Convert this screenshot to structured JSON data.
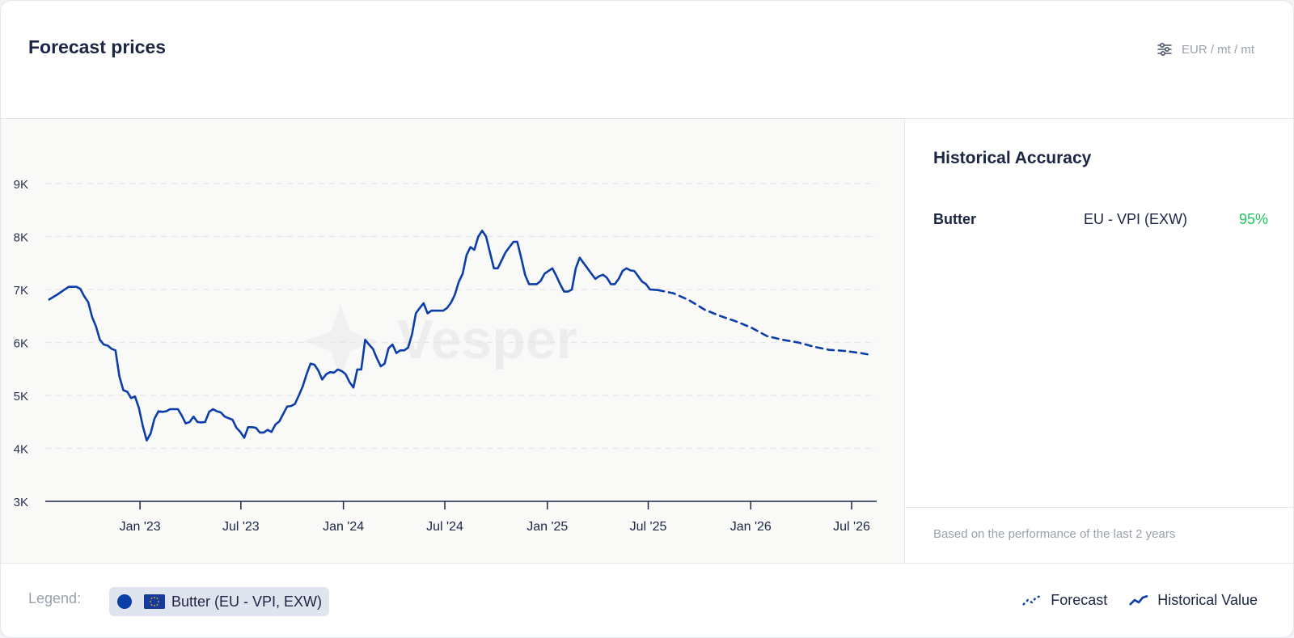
{
  "header": {
    "title": "Forecast prices",
    "unit_label": "EUR / mt / mt",
    "unit_icon": "sliders-icon"
  },
  "side_panel": {
    "title": "Historical Accuracy",
    "rows": [
      {
        "name": "Butter",
        "source": "EU - VPI (EXW)",
        "accuracy": "95%"
      }
    ],
    "footer_note": "Based on the performance of the last 2 years",
    "accuracy_color": "#22c55e"
  },
  "legend": {
    "label": "Legend:",
    "chip_text": "Butter (EU - VPI, EXW)",
    "chip_icon": "eu-flag-icon",
    "forecast_label": "Forecast",
    "historical_label": "Historical Value"
  },
  "watermark": "Vesper",
  "chart_data": {
    "type": "line",
    "yticks": [
      "3K",
      "4K",
      "5K",
      "6K",
      "7K",
      "8K",
      "9K"
    ],
    "ylim": [
      3000,
      9000
    ],
    "xlim": [
      "2022-07-15",
      "2026-08-15"
    ],
    "xticks": [
      {
        "label": "Jan '23",
        "date": "2023-01-01"
      },
      {
        "label": "Jul '23",
        "date": "2023-07-01"
      },
      {
        "label": "Jan '24",
        "date": "2024-01-01"
      },
      {
        "label": "Jul '24",
        "date": "2024-07-01"
      },
      {
        "label": "Jan '25",
        "date": "2025-01-01"
      },
      {
        "label": "Jul '25",
        "date": "2025-07-01"
      },
      {
        "label": "Jan '26",
        "date": "2026-01-01"
      },
      {
        "label": "Jul '26",
        "date": "2026-07-01"
      }
    ],
    "grid": true,
    "line_color": "#0b3ea6",
    "series": [
      {
        "name": "Historical Value",
        "style": "solid",
        "points": [
          [
            "2022-07-22",
            6810
          ],
          [
            "2022-08-05",
            6900
          ],
          [
            "2022-08-26",
            7050
          ],
          [
            "2022-09-09",
            7050
          ],
          [
            "2022-09-16",
            7010
          ],
          [
            "2022-09-23",
            6870
          ],
          [
            "2022-09-30",
            6760
          ],
          [
            "2022-10-07",
            6480
          ],
          [
            "2022-10-14",
            6300
          ],
          [
            "2022-10-21",
            6050
          ],
          [
            "2022-10-28",
            5960
          ],
          [
            "2022-11-04",
            5940
          ],
          [
            "2022-11-11",
            5880
          ],
          [
            "2022-11-18",
            5850
          ],
          [
            "2022-11-25",
            5360
          ],
          [
            "2022-12-02",
            5100
          ],
          [
            "2022-12-09",
            5070
          ],
          [
            "2022-12-16",
            4950
          ],
          [
            "2022-12-23",
            4980
          ],
          [
            "2022-12-30",
            4760
          ],
          [
            "2023-01-06",
            4420
          ],
          [
            "2023-01-13",
            4150
          ],
          [
            "2023-01-20",
            4280
          ],
          [
            "2023-01-27",
            4560
          ],
          [
            "2023-02-03",
            4700
          ],
          [
            "2023-02-10",
            4690
          ],
          [
            "2023-02-17",
            4700
          ],
          [
            "2023-02-24",
            4740
          ],
          [
            "2023-03-03",
            4740
          ],
          [
            "2023-03-10",
            4740
          ],
          [
            "2023-03-17",
            4620
          ],
          [
            "2023-03-24",
            4470
          ],
          [
            "2023-03-31",
            4500
          ],
          [
            "2023-04-07",
            4600
          ],
          [
            "2023-04-14",
            4500
          ],
          [
            "2023-04-21",
            4490
          ],
          [
            "2023-04-28",
            4500
          ],
          [
            "2023-05-05",
            4690
          ],
          [
            "2023-05-12",
            4740
          ],
          [
            "2023-05-19",
            4700
          ],
          [
            "2023-05-26",
            4680
          ],
          [
            "2023-06-02",
            4600
          ],
          [
            "2023-06-09",
            4570
          ],
          [
            "2023-06-16",
            4540
          ],
          [
            "2023-06-23",
            4390
          ],
          [
            "2023-06-30",
            4310
          ],
          [
            "2023-07-07",
            4200
          ],
          [
            "2023-07-14",
            4400
          ],
          [
            "2023-07-21",
            4400
          ],
          [
            "2023-07-28",
            4390
          ],
          [
            "2023-08-04",
            4300
          ],
          [
            "2023-08-11",
            4300
          ],
          [
            "2023-08-18",
            4350
          ],
          [
            "2023-08-25",
            4310
          ],
          [
            "2023-09-01",
            4450
          ],
          [
            "2023-09-08",
            4510
          ],
          [
            "2023-09-15",
            4650
          ],
          [
            "2023-09-22",
            4790
          ],
          [
            "2023-09-29",
            4800
          ],
          [
            "2023-10-06",
            4840
          ],
          [
            "2023-10-13",
            5000
          ],
          [
            "2023-10-20",
            5170
          ],
          [
            "2023-10-27",
            5400
          ],
          [
            "2023-11-03",
            5600
          ],
          [
            "2023-11-10",
            5580
          ],
          [
            "2023-11-17",
            5470
          ],
          [
            "2023-11-24",
            5300
          ],
          [
            "2023-12-01",
            5400
          ],
          [
            "2023-12-08",
            5440
          ],
          [
            "2023-12-15",
            5430
          ],
          [
            "2023-12-22",
            5490
          ],
          [
            "2023-12-29",
            5460
          ],
          [
            "2024-01-05",
            5400
          ],
          [
            "2024-01-12",
            5250
          ],
          [
            "2024-01-19",
            5150
          ],
          [
            "2024-01-26",
            5490
          ],
          [
            "2024-02-02",
            5490
          ],
          [
            "2024-02-09",
            6050
          ],
          [
            "2024-02-16",
            5960
          ],
          [
            "2024-02-23",
            5880
          ],
          [
            "2024-03-01",
            5700
          ],
          [
            "2024-03-08",
            5550
          ],
          [
            "2024-03-15",
            5600
          ],
          [
            "2024-03-22",
            5890
          ],
          [
            "2024-03-29",
            5960
          ],
          [
            "2024-04-05",
            5800
          ],
          [
            "2024-04-12",
            5850
          ],
          [
            "2024-04-19",
            5850
          ],
          [
            "2024-04-26",
            5900
          ],
          [
            "2024-05-03",
            6150
          ],
          [
            "2024-05-10",
            6550
          ],
          [
            "2024-05-17",
            6650
          ],
          [
            "2024-05-24",
            6740
          ],
          [
            "2024-05-31",
            6550
          ],
          [
            "2024-06-07",
            6600
          ],
          [
            "2024-06-14",
            6600
          ],
          [
            "2024-06-21",
            6600
          ],
          [
            "2024-06-28",
            6600
          ],
          [
            "2024-07-05",
            6650
          ],
          [
            "2024-07-12",
            6750
          ],
          [
            "2024-07-19",
            6900
          ],
          [
            "2024-07-26",
            7140
          ],
          [
            "2024-08-02",
            7300
          ],
          [
            "2024-08-09",
            7650
          ],
          [
            "2024-08-16",
            7800
          ],
          [
            "2024-08-23",
            7750
          ],
          [
            "2024-08-30",
            8000
          ],
          [
            "2024-09-06",
            8110
          ],
          [
            "2024-09-13",
            8000
          ],
          [
            "2024-09-20",
            7700
          ],
          [
            "2024-09-27",
            7400
          ],
          [
            "2024-10-04",
            7400
          ],
          [
            "2024-10-11",
            7550
          ],
          [
            "2024-10-18",
            7700
          ],
          [
            "2024-10-25",
            7800
          ],
          [
            "2024-11-01",
            7900
          ],
          [
            "2024-11-08",
            7900
          ],
          [
            "2024-11-15",
            7600
          ],
          [
            "2024-11-22",
            7280
          ],
          [
            "2024-11-29",
            7100
          ],
          [
            "2024-12-06",
            7100
          ],
          [
            "2024-12-13",
            7100
          ],
          [
            "2024-12-20",
            7160
          ],
          [
            "2024-12-27",
            7300
          ],
          [
            "2025-01-03",
            7350
          ],
          [
            "2025-01-10",
            7400
          ],
          [
            "2025-01-17",
            7260
          ],
          [
            "2025-01-24",
            7100
          ],
          [
            "2025-01-31",
            6960
          ],
          [
            "2025-02-07",
            6960
          ],
          [
            "2025-02-14",
            7000
          ],
          [
            "2025-02-21",
            7400
          ],
          [
            "2025-02-28",
            7600
          ],
          [
            "2025-03-07",
            7500
          ],
          [
            "2025-03-14",
            7400
          ],
          [
            "2025-03-21",
            7300
          ],
          [
            "2025-03-28",
            7200
          ],
          [
            "2025-04-04",
            7250
          ],
          [
            "2025-04-11",
            7280
          ],
          [
            "2025-04-18",
            7220
          ],
          [
            "2025-04-25",
            7100
          ],
          [
            "2025-05-02",
            7100
          ],
          [
            "2025-05-09",
            7200
          ],
          [
            "2025-05-16",
            7350
          ],
          [
            "2025-05-23",
            7400
          ],
          [
            "2025-05-30",
            7360
          ],
          [
            "2025-06-06",
            7350
          ],
          [
            "2025-06-13",
            7250
          ],
          [
            "2025-06-20",
            7150
          ],
          [
            "2025-06-27",
            7100
          ],
          [
            "2025-07-04",
            7000
          ],
          [
            "2025-07-18",
            6990
          ]
        ]
      },
      {
        "name": "Forecast",
        "style": "dashed",
        "points": [
          [
            "2025-07-18",
            6990
          ],
          [
            "2025-08-15",
            6930
          ],
          [
            "2025-09-12",
            6800
          ],
          [
            "2025-10-10",
            6620
          ],
          [
            "2025-11-07",
            6500
          ],
          [
            "2025-12-05",
            6400
          ],
          [
            "2026-01-02",
            6280
          ],
          [
            "2026-01-30",
            6120
          ],
          [
            "2026-02-27",
            6050
          ],
          [
            "2026-03-27",
            6000
          ],
          [
            "2026-04-24",
            5920
          ],
          [
            "2026-05-22",
            5860
          ],
          [
            "2026-06-19",
            5840
          ],
          [
            "2026-07-17",
            5800
          ],
          [
            "2026-08-07",
            5760
          ]
        ]
      }
    ]
  }
}
